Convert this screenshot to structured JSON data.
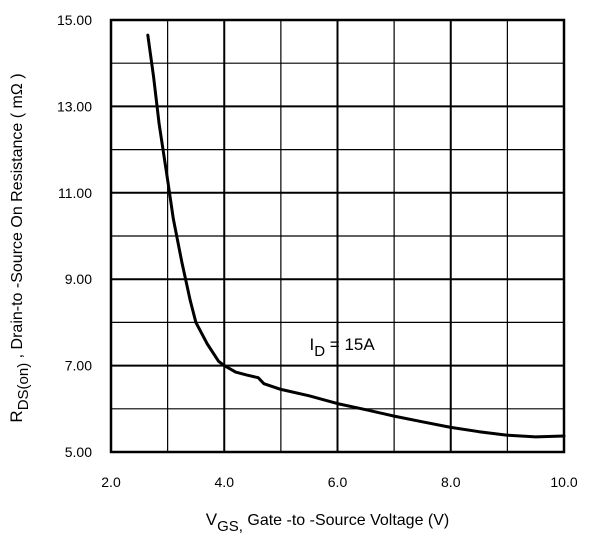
{
  "chart_data": {
    "type": "line",
    "xlim": [
      2.0,
      10.0
    ],
    "ylim": [
      5.0,
      15.0
    ],
    "x_ticks": [
      "2.0",
      "4.0",
      "6.0",
      "8.0",
      "10.0"
    ],
    "y_ticks": [
      "15.00",
      "13.00",
      "11.00",
      "9.00",
      "7.00",
      "5.00"
    ],
    "x_tick_values": [
      2,
      4,
      6,
      8,
      10
    ],
    "y_tick_values": [
      15,
      13,
      11,
      9,
      7,
      5
    ],
    "xlabel": {
      "main": "V",
      "sub": "GS,",
      "rest": " Gate -to -Source Voltage  (V)"
    },
    "ylabel": {
      "main": "R",
      "sub": "DS(on)",
      "rest": " ,   Drain-to -Source On Resistance ( mΩ )"
    },
    "grid": {
      "major_x": 1.0,
      "major_y": 1.0,
      "bold_x": 2.0,
      "bold_y": 2.0
    },
    "annotation": {
      "main": "I",
      "sub": "D",
      "rest": " = 15A",
      "x": 6.0,
      "y": 7.5
    },
    "series": [
      {
        "values": [
          [
            2.65,
            14.65
          ],
          [
            2.75,
            13.7
          ],
          [
            2.85,
            12.6
          ],
          [
            3.0,
            11.3
          ],
          [
            3.1,
            10.4
          ],
          [
            3.25,
            9.4
          ],
          [
            3.4,
            8.5
          ],
          [
            3.5,
            8.0
          ],
          [
            3.7,
            7.5
          ],
          [
            3.9,
            7.1
          ],
          [
            4.0,
            7.0
          ],
          [
            4.2,
            6.85
          ],
          [
            4.4,
            6.78
          ],
          [
            4.6,
            6.72
          ],
          [
            4.7,
            6.58
          ],
          [
            5.0,
            6.45
          ],
          [
            5.5,
            6.3
          ],
          [
            6.0,
            6.12
          ],
          [
            6.5,
            5.98
          ],
          [
            7.0,
            5.83
          ],
          [
            7.5,
            5.7
          ],
          [
            8.0,
            5.57
          ],
          [
            8.5,
            5.47
          ],
          [
            9.0,
            5.39
          ],
          [
            9.5,
            5.35
          ],
          [
            10.0,
            5.37
          ]
        ]
      }
    ]
  }
}
